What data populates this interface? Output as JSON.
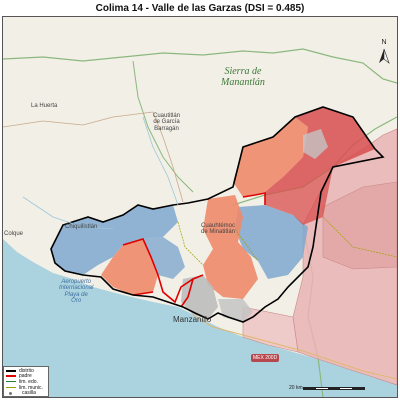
{
  "title": "Colima 14 - Valle de las Garzas (DSI = 0.485)",
  "north_label": "N",
  "place_labels": {
    "sierra": "Sierra de\nManantlán",
    "la_huerta": "La Huerta",
    "cuautitlan_gb": "Cuautitlán\nde García\nBarragán",
    "chiquilistlan": "Chiquilistlán",
    "cuauhtemoc": "Cuauhtémoc\nde Minatitlán",
    "aeropuerto": "Aeropuerto\nInternacional\nPlaya de\nOro",
    "manzanillo": "Manzanillo",
    "colque": "Colque"
  },
  "road_shield": "MEX 200D",
  "scale_label": "20 km",
  "legend": [
    {
      "label": "distrito",
      "color": "#000000"
    },
    {
      "label": "padre",
      "color": "#e00000"
    },
    {
      "label": "lim. edo.",
      "color": "#2e7d32"
    },
    {
      "label": "lim. munic.",
      "color": "#a0a000"
    },
    {
      "label": "casilla",
      "color": "#777777"
    }
  ],
  "colors": {
    "land": "#f1efe6",
    "sea": "#aad3df",
    "district_blue": "#7fa8cf",
    "district_orange": "#ef8a6a",
    "district_red": "#d84d4d",
    "other_pink": "#e9b3b3",
    "state_border": "#8cb87e"
  }
}
